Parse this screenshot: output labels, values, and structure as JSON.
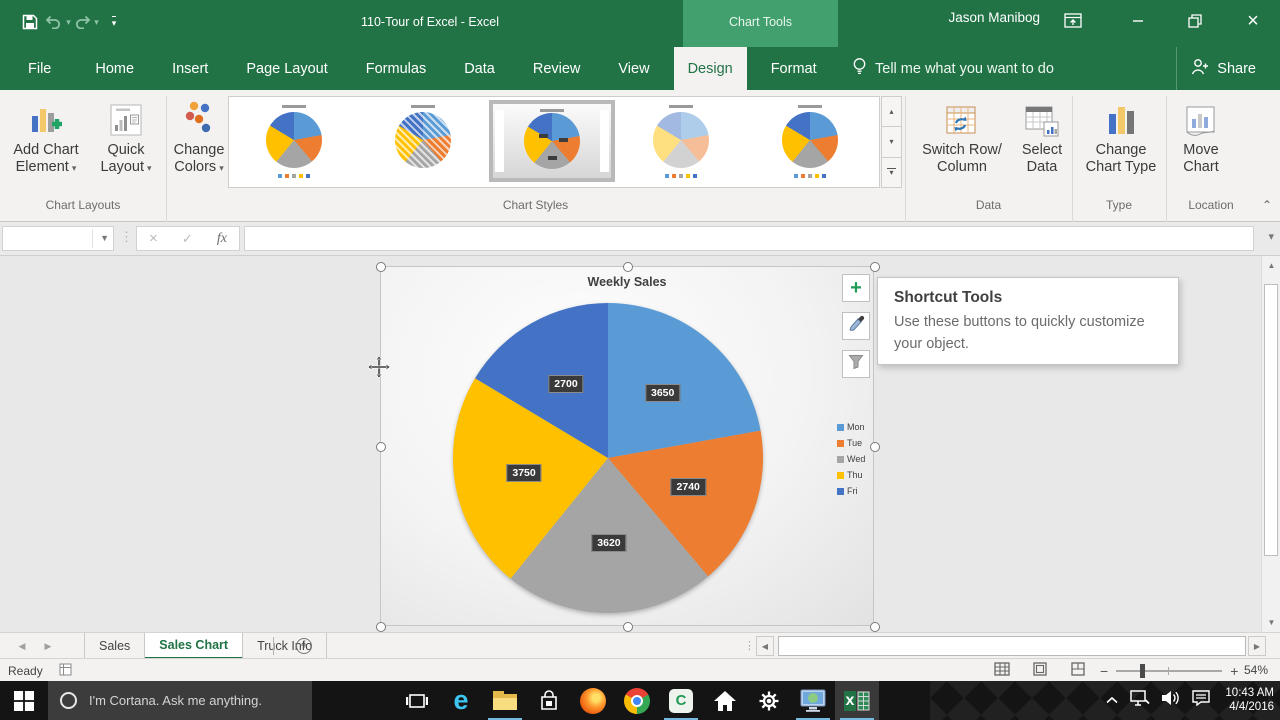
{
  "window": {
    "title": "110-Tour of Excel - Excel",
    "user": "Jason Manibog",
    "contextual_tab_group": "Chart Tools"
  },
  "tabs": {
    "items": [
      "File",
      "Home",
      "Insert",
      "Page Layout",
      "Formulas",
      "Data",
      "Review",
      "View",
      "Design",
      "Format"
    ],
    "active": "Design",
    "tell_me": "Tell me what you want to do",
    "share": "Share"
  },
  "ribbon": {
    "buttons": {
      "add_chart_element": {
        "line1": "Add Chart",
        "line2": "Element"
      },
      "quick_layout": {
        "line1": "Quick",
        "line2": "Layout"
      },
      "change_colors": {
        "line1": "Change",
        "line2": "Colors"
      },
      "switch_row_column": {
        "line1": "Switch Row/",
        "line2": "Column"
      },
      "select_data": {
        "line1": "Select",
        "line2": "Data"
      },
      "change_chart_type": {
        "line1": "Change",
        "line2": "Chart Type"
      },
      "move_chart": {
        "line1": "Move",
        "line2": "Chart"
      }
    },
    "group_labels": {
      "chart_layouts": "Chart Layouts",
      "chart_styles": "Chart Styles",
      "data": "Data",
      "type": "Type",
      "location": "Location"
    },
    "gallery": {
      "variants": [
        "colored-legend",
        "striped",
        "gradient-selected",
        "pastel-legend",
        "colored-legend"
      ],
      "selected_index": 2
    }
  },
  "formula_bar": {
    "name_box": "",
    "formula": ""
  },
  "chart_data": {
    "type": "pie",
    "title": "Weekly Sales",
    "categories": [
      "Mon",
      "Tue",
      "Wed",
      "Thu",
      "Fri"
    ],
    "values": [
      3650,
      2740,
      3620,
      3750,
      2700
    ],
    "colors": [
      "#5B9BD5",
      "#ED7D31",
      "#A5A5A5",
      "#FFC000",
      "#4472C4"
    ],
    "data_labels": [
      3650,
      2740,
      3620,
      3750,
      2700
    ],
    "legend_position": "right"
  },
  "chart_tooltip": {
    "title": "Shortcut Tools",
    "body": "Use these buttons to quickly customize your object."
  },
  "sheet_bar": {
    "tabs": [
      "Sales",
      "Sales Chart",
      "Truck Info"
    ],
    "active": "Sales Chart"
  },
  "status_bar": {
    "mode": "Ready",
    "zoom": "54%"
  },
  "taskbar": {
    "search_text": "I'm Cortana. Ask me anything.",
    "time": "10:43 AM",
    "date": "4/4/2016",
    "apps": [
      {
        "name": "task-view",
        "open": false,
        "active": false
      },
      {
        "name": "edge",
        "open": false,
        "active": false
      },
      {
        "name": "file-explorer",
        "open": true,
        "active": false
      },
      {
        "name": "store",
        "open": false,
        "active": false
      },
      {
        "name": "firefox",
        "open": false,
        "active": false
      },
      {
        "name": "chrome",
        "open": false,
        "active": false
      },
      {
        "name": "camtasia",
        "open": true,
        "active": false
      },
      {
        "name": "home",
        "open": false,
        "active": false
      },
      {
        "name": "settings",
        "open": false,
        "active": false
      },
      {
        "name": "media-pc",
        "open": true,
        "active": false
      },
      {
        "name": "excel",
        "open": true,
        "active": true
      }
    ],
    "tray": [
      "hidden-icons-chevron",
      "network",
      "volume",
      "action-center"
    ]
  }
}
